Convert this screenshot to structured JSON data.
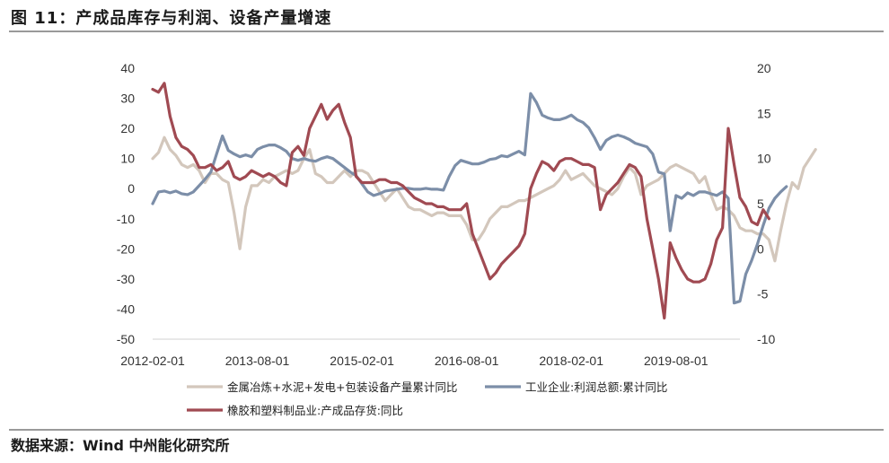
{
  "title": "图 11：产成品库存与利润、设备产量增速",
  "source": "数据来源：Wind 中州能化研究所",
  "chart_data": {
    "type": "line",
    "x_ticks": [
      "2012-02-01",
      "2013-08-01",
      "2015-02-01",
      "2016-08-01",
      "2018-02-01",
      "2019-08-01"
    ],
    "x_range": [
      "2012-02",
      "2020-07"
    ],
    "left_axis": {
      "ticks": [
        "40",
        "30",
        "20",
        "10",
        "0",
        "-10",
        "-20",
        "-30",
        "-40",
        "-50"
      ],
      "ylim": [
        -50,
        40
      ]
    },
    "right_axis": {
      "ticks": [
        "20",
        "15",
        "10",
        "5",
        "0",
        "-5",
        "-10"
      ],
      "ylim": [
        -10,
        20
      ]
    },
    "legend_position": "bottom",
    "series": [
      {
        "name": "金属冶炼+水泥+发电+包装设备产量累计同比",
        "axis": "left",
        "color": "#d3c7bc",
        "start": "2012-02",
        "values": [
          10,
          12,
          17,
          13,
          11,
          8,
          7,
          8,
          6,
          2,
          5,
          5,
          3,
          2,
          -8,
          -20,
          -6,
          1,
          1,
          3,
          2,
          4,
          5,
          6,
          5,
          6,
          10,
          13,
          5,
          4,
          2,
          2,
          4,
          6,
          4,
          6,
          6,
          5,
          2,
          -1,
          -4,
          -2,
          0,
          -3,
          -6,
          -7,
          -7,
          -8,
          -9,
          -8,
          -8,
          -9,
          -9,
          -9,
          -12,
          -17,
          -17,
          -14,
          -10,
          -8,
          -6,
          -6,
          -5,
          -4,
          -4,
          -3,
          -2,
          -1,
          0,
          1,
          3,
          6,
          3,
          4,
          5,
          3,
          1,
          0,
          -1,
          -2,
          0,
          4,
          7,
          5,
          -2,
          1,
          2,
          3,
          5,
          7,
          8,
          7,
          6,
          5,
          2,
          4,
          -2,
          -7,
          -6,
          -7,
          -9,
          -13,
          -14,
          -14,
          -15,
          -15,
          -17,
          -24,
          -14,
          -5,
          2,
          0,
          7,
          10,
          13
        ]
      },
      {
        "name": "工业企业:利润总额:累计同比",
        "axis": "right",
        "color": "#7c8ea8",
        "start": "2012-02",
        "values": [
          5,
          6.3,
          6.4,
          6.2,
          6.4,
          6.1,
          6,
          6.3,
          7,
          7.7,
          8.5,
          10.5,
          12.5,
          10.9,
          10.5,
          10.2,
          10.4,
          10.2,
          11,
          11.3,
          11.5,
          11.5,
          11.2,
          10.8,
          10,
          9.8,
          10,
          9.8,
          9.7,
          10,
          10.2,
          10,
          9.5,
          9,
          8.5,
          8.1,
          7.2,
          6.3,
          5.9,
          6.1,
          6.4,
          6.5,
          6.6,
          6.7,
          6.7,
          6.6,
          6.6,
          6.7,
          6.6,
          6.6,
          6.5,
          8,
          9.2,
          9.8,
          9.6,
          9.4,
          9.4,
          9.6,
          9.9,
          10,
          10.3,
          10.2,
          10.5,
          10.8,
          10.4,
          17.2,
          16.2,
          14.8,
          14.5,
          14.3,
          14.3,
          14.5,
          14.8,
          14.3,
          14,
          13.4,
          12.3,
          11,
          12,
          12.4,
          12.6,
          12.4,
          12.1,
          11.7,
          11.5,
          11.3,
          10.5,
          8.5,
          8.3,
          2,
          5.9,
          5.6,
          6.2,
          5.9,
          6.3,
          6.3,
          6.1,
          5.9,
          6.3,
          5.6,
          -6,
          -5.8,
          -2.8,
          -1.3,
          0.5,
          2.6,
          4.5,
          5.6,
          6.3,
          6.9
        ]
      },
      {
        "name": "橡胶和塑料制品业:产成品存货:同比",
        "axis": "left",
        "color": "#a04a52",
        "start": "2012-02",
        "values": [
          33,
          32,
          35,
          24,
          17,
          14,
          13,
          11,
          7,
          7,
          8,
          6,
          7,
          9,
          4,
          3,
          4,
          6,
          5,
          4,
          5,
          4,
          2,
          1,
          12,
          14,
          11,
          20,
          24,
          28,
          23,
          26,
          28,
          22,
          17,
          4,
          2,
          2,
          2,
          3,
          3,
          2,
          2,
          1,
          -1,
          -3,
          -4,
          -5,
          -5,
          -6,
          -6,
          -7,
          -7,
          -7,
          -5,
          -15,
          -20,
          -25,
          -30,
          -28,
          -25,
          -23,
          -21,
          -19,
          -15,
          0,
          5,
          9,
          8,
          6,
          9,
          10,
          10,
          9,
          8,
          8,
          7,
          -7,
          -2,
          0,
          2,
          5,
          8,
          7,
          4,
          -10,
          -20,
          -30,
          -43,
          -18,
          -23,
          -27,
          -30,
          -31,
          -31,
          -30,
          -25,
          -17,
          -13,
          20,
          8,
          -3,
          -6,
          -11,
          -12,
          -7,
          -10
        ]
      }
    ]
  }
}
